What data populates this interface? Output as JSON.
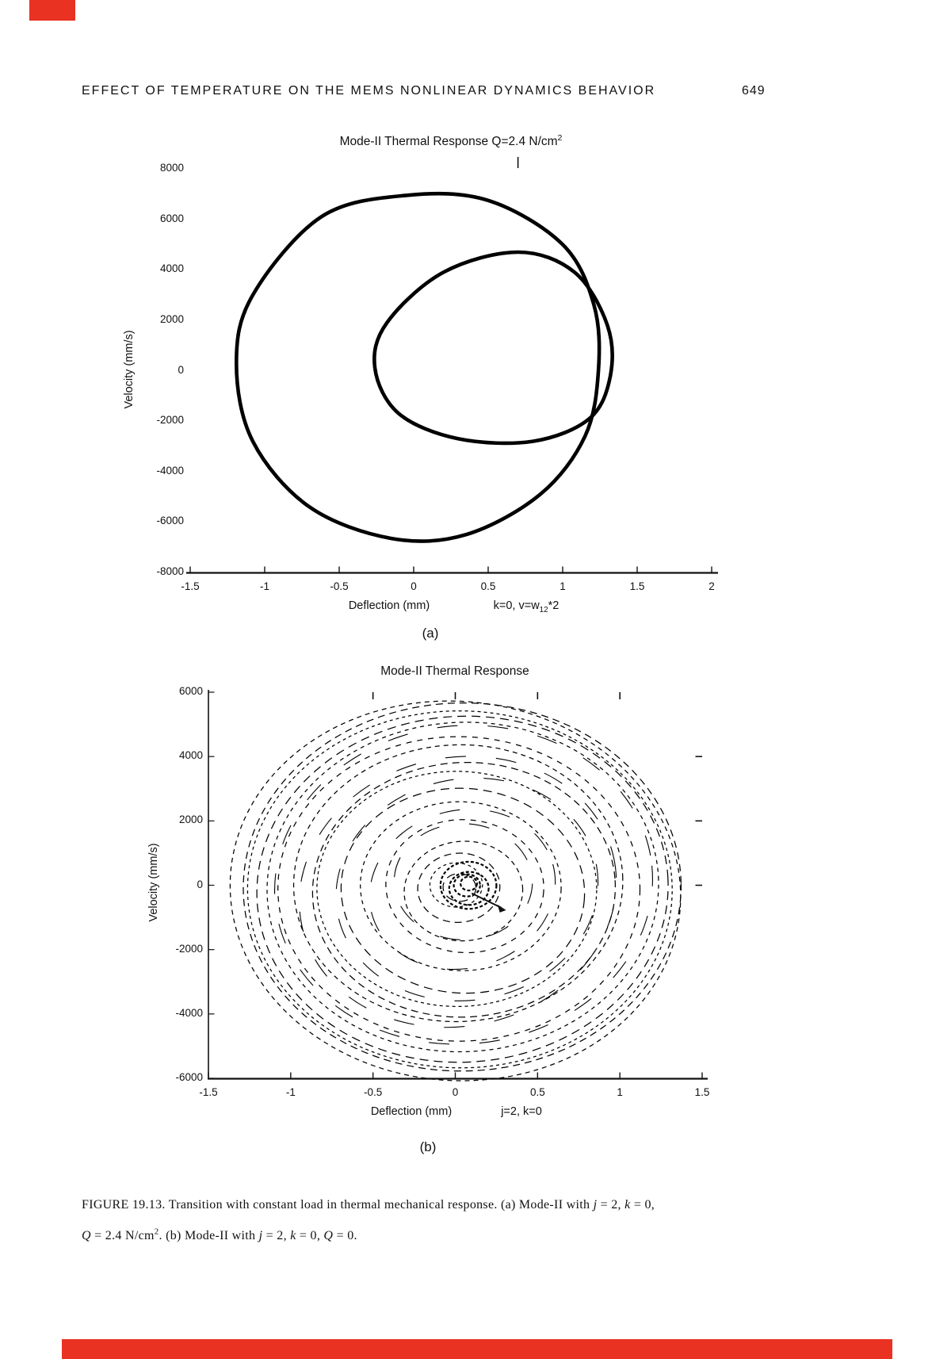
{
  "page": {
    "header": {
      "title": "EFFECT OF TEMPERATURE ON THE MEMS NONLINEAR DYNAMICS BEHAVIOR",
      "page_number": "649"
    },
    "figure_label_a": "(a)",
    "figure_label_b": "(b)",
    "caption": {
      "line1": [
        {
          "t": "FIGURE 19.13.  Transition with constant load in thermal mechanical response. (a) Mode-II with "
        },
        {
          "t": "j",
          "s": "it"
        },
        {
          "t": " = 2, "
        },
        {
          "t": "k",
          "s": "it"
        },
        {
          "t": " = 0,"
        }
      ],
      "line2": [
        {
          "t": "Q",
          "s": "it"
        },
        {
          "t": " = 2.4 N/cm"
        },
        {
          "t": "2",
          "s": "sup"
        },
        {
          "t": ". (b) Mode-II with "
        },
        {
          "t": "j",
          "s": "it"
        },
        {
          "t": " = 2, "
        },
        {
          "t": "k",
          "s": "it"
        },
        {
          "t": " = 0, "
        },
        {
          "t": "Q",
          "s": "it"
        },
        {
          "t": " = 0."
        }
      ]
    },
    "scan_marks": {
      "color": "#e93222"
    }
  },
  "chart_data": [
    {
      "id": "a",
      "type": "line",
      "title_parts": [
        {
          "t": "Mode-II Thermal Response Q=2.4 N/cm"
        },
        {
          "t": "2",
          "s": "sup"
        }
      ],
      "xlabel": "Deflection (mm)",
      "x_annotation_parts": [
        {
          "t": "k=0,  v=w"
        },
        {
          "t": "12",
          "s": "sub"
        },
        {
          "t": "*2"
        }
      ],
      "ylabel": "Velocity (mm/s)",
      "xlim": [
        -1.5,
        2
      ],
      "ylim": [
        -8000,
        8000
      ],
      "xticks": [
        -1.5,
        -1,
        -0.5,
        0,
        0.5,
        1,
        1.5,
        2
      ],
      "yticks": [
        8000,
        6000,
        4000,
        2000,
        0,
        -2000,
        -4000,
        -6000,
        -8000
      ],
      "top_ticks": [
        0.7
      ],
      "grid": false,
      "legend": null,
      "line_color": "#000000",
      "series": [
        {
          "name": "outer periodic orbit",
          "style": "solid",
          "line_width": 4.6,
          "points": [
            [
              -1.19,
              300
            ],
            [
              -1.08,
              3000
            ],
            [
              -0.62,
              6100
            ],
            [
              -0.05,
              6950
            ],
            [
              0.5,
              6750
            ],
            [
              1.0,
              5000
            ],
            [
              1.21,
              2600
            ],
            [
              1.24,
              0
            ],
            [
              1.15,
              -2600
            ],
            [
              0.85,
              -4900
            ],
            [
              0.35,
              -6500
            ],
            [
              -0.15,
              -6650
            ],
            [
              -0.7,
              -5400
            ],
            [
              -1.08,
              -2800
            ]
          ]
        },
        {
          "name": "inner periodic orbit",
          "style": "solid",
          "line_width": 4.6,
          "points": [
            [
              -0.26,
              100
            ],
            [
              -0.18,
              1900
            ],
            [
              0.2,
              3900
            ],
            [
              0.7,
              4700
            ],
            [
              1.08,
              3900
            ],
            [
              1.3,
              1800
            ],
            [
              1.32,
              -200
            ],
            [
              1.18,
              -1900
            ],
            [
              0.8,
              -2800
            ],
            [
              0.3,
              -2700
            ],
            [
              -0.1,
              -1700
            ]
          ]
        }
      ]
    },
    {
      "id": "b",
      "type": "line",
      "title": "Mode-II Thermal Response",
      "xlabel": "Deflection (mm)",
      "x_annotation_parts": [
        {
          "t": "j=2, k=0"
        }
      ],
      "ylabel": "Velocity (mm/s)",
      "xlim": [
        -1.5,
        1.5
      ],
      "ylim": [
        -6000,
        6000
      ],
      "xticks": [
        -1.5,
        -1,
        -0.5,
        0,
        0.5,
        1,
        1.5
      ],
      "yticks": [
        6000,
        4000,
        2000,
        0,
        -2000,
        -4000,
        -6000
      ],
      "top_ticks": [
        -0.5,
        0,
        0.5,
        1
      ],
      "right_ticks": [
        4000,
        2000,
        0
      ],
      "grid": false,
      "legend": null,
      "line_color": "#000000",
      "series": [
        {
          "name": "chaotic multi-loop trajectory",
          "style": "dashed",
          "line_width": 1.25,
          "center": [
            0.03,
            -60
          ],
          "ring_radii_x": [
            1.37,
            1.33,
            1.29,
            1.25,
            1.19,
            1.1,
            1.0,
            0.92,
            0.85,
            0.74,
            0.61,
            0.48,
            0.36,
            0.25,
            0.16,
            0.1
          ],
          "ry_per_rx": 4300,
          "sweep_arc_radii_x": [
            1.15,
            0.97,
            0.8,
            0.57,
            0.42
          ],
          "core": {
            "center": [
              0.07,
              -30
            ],
            "radii_x": [
              0.17,
              0.12,
              0.08,
              0.05
            ]
          },
          "x_extent": [
            -1.35,
            1.4
          ],
          "v_extent": [
            -5800,
            5800
          ]
        }
      ]
    }
  ]
}
